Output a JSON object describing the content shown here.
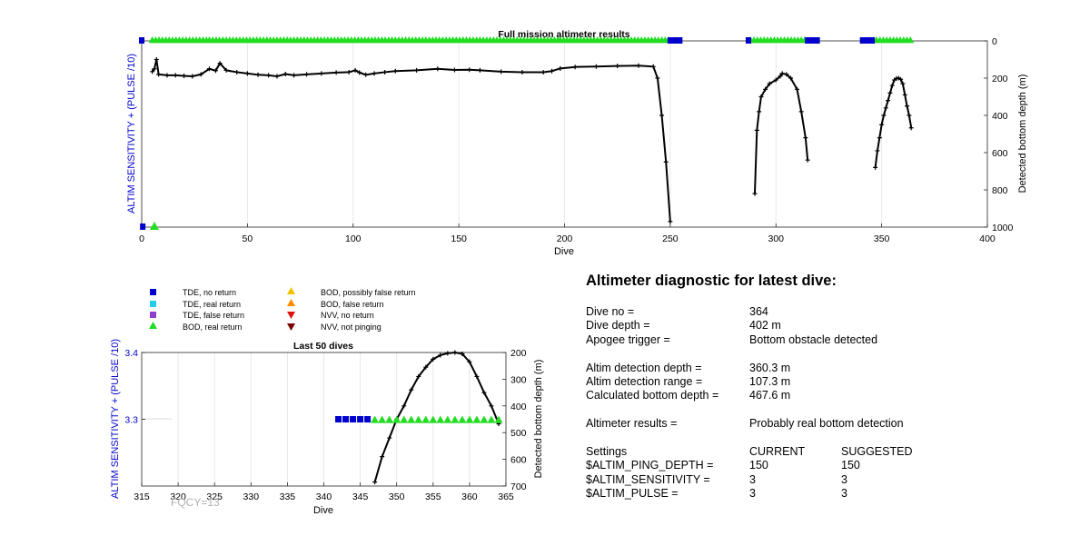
{
  "colors": {
    "axis_blue": "#0000cc",
    "tde_no_return": "#0000cc",
    "tde_real_return": "#22ccee",
    "tde_false_return": "#8a3fd1",
    "bod_real_return": "#22dd22",
    "bod_possibly_false": "#f2c200",
    "bod_false": "#ff8a00",
    "nvv_no_return": "#e01010",
    "nvv_not_pinging": "#7a0000",
    "depth_line": "#000000"
  },
  "chart_data": [
    {
      "id": "full",
      "type": "line",
      "title": "Full mission altimeter results",
      "xlabel": "Dive",
      "ylabel_left": "ALTIM SENSITIVITY + (PULSE /10)",
      "ylabel_right": "Detected bottom depth (m)",
      "xlim": [
        0,
        400
      ],
      "xticks": [
        "0",
        "50",
        "100",
        "150",
        "200",
        "250",
        "300",
        "350",
        "400"
      ],
      "ylim_right": [
        0,
        1000
      ],
      "yticks_right": [
        "0",
        "200",
        "400",
        "600",
        "800",
        "1000"
      ],
      "grid": "vertical",
      "depth_series": [
        {
          "x": [
            5,
            6,
            7,
            8,
            12,
            16,
            20,
            24,
            28,
            32,
            35,
            37,
            40,
            45,
            50,
            55,
            60,
            64,
            68,
            72,
            78,
            85,
            92,
            98,
            101,
            103,
            106,
            110,
            115,
            120,
            130,
            140,
            148,
            155,
            160,
            170,
            180,
            190,
            194,
            198,
            205,
            215,
            225,
            235,
            242,
            244,
            246,
            248,
            250
          ],
          "y": [
            165,
            150,
            100,
            180,
            185,
            185,
            188,
            190,
            180,
            150,
            160,
            120,
            158,
            168,
            175,
            182,
            185,
            190,
            178,
            185,
            180,
            175,
            170,
            168,
            158,
            170,
            182,
            175,
            168,
            162,
            158,
            150,
            156,
            155,
            158,
            165,
            168,
            168,
            162,
            148,
            140,
            138,
            135,
            133,
            138,
            200,
            400,
            650,
            970
          ]
        },
        {
          "x": [
            290,
            291,
            292,
            293,
            295,
            297,
            300,
            302,
            303,
            305,
            307,
            310,
            312,
            314,
            315
          ],
          "y": [
            820,
            480,
            380,
            300,
            260,
            230,
            210,
            190,
            175,
            180,
            200,
            260,
            380,
            520,
            640
          ]
        },
        {
          "x": [
            347,
            348,
            349,
            350,
            351,
            352,
            353,
            354,
            355,
            356,
            357,
            358,
            359,
            360,
            361,
            362,
            363,
            364
          ],
          "y": [
            680,
            590,
            520,
            450,
            400,
            360,
            320,
            280,
            240,
            210,
            202,
            200,
            206,
            230,
            290,
            350,
            400,
            467
          ]
        }
      ],
      "tde_segments": [
        [
          0,
          1
        ],
        [
          250,
          255
        ],
        [
          287,
          288
        ],
        [
          315,
          320
        ],
        [
          341,
          346
        ]
      ],
      "bod_segments": [
        [
          5,
          32
        ],
        [
          32,
          197
        ],
        [
          198,
          250
        ],
        [
          288,
          315
        ],
        [
          346,
          364
        ]
      ],
      "bod_legend_point": {
        "x": 6,
        "y_frac": 1.0
      },
      "tde_legend_point": {
        "x": 0.5,
        "y_frac": 1.0
      }
    },
    {
      "id": "last50",
      "type": "line",
      "title": "Last 50 dives",
      "xlabel": "Dive",
      "ylabel_left": "ALTIM SENSITIVITY + (PULSE /10)",
      "ylabel_right": "Detected bottom depth (m)",
      "xlim": [
        315,
        365
      ],
      "xticks": [
        "315",
        "320",
        "325",
        "330",
        "335",
        "340",
        "345",
        "350",
        "355",
        "360",
        "365"
      ],
      "ylim_left": [
        3.2,
        3.4
      ],
      "yticks_left": [
        "3.4",
        "3.3"
      ],
      "ylim_right": [
        200,
        700
      ],
      "yticks_right": [
        "200",
        "300",
        "400",
        "500",
        "600",
        "700"
      ],
      "grid": "vertical",
      "tde_x": [
        342,
        343,
        344,
        345,
        346
      ],
      "tde_y": 3.3,
      "bod_x": [
        347,
        348,
        349,
        350,
        351,
        352,
        353,
        354,
        355,
        356,
        357,
        358,
        359,
        360,
        361,
        362,
        363,
        364
      ],
      "bod_y": 3.3,
      "depth": {
        "x": [
          347,
          348,
          349,
          350,
          351,
          352,
          353,
          354,
          355,
          356,
          357,
          358,
          359,
          360,
          361,
          362,
          363,
          364
        ],
        "y": [
          685,
          590,
          520,
          450,
          400,
          340,
          290,
          255,
          225,
          210,
          203,
          200,
          205,
          235,
          290,
          350,
          400,
          467
        ]
      },
      "annotation": "FQCY=13"
    }
  ],
  "legend": {
    "col1": [
      "TDE, no return",
      "TDE, real return",
      "TDE, false return",
      "BOD, real return"
    ],
    "col2": [
      "BOD, possibly false return",
      "BOD, false return",
      "NVV, no return",
      "NVV, not pinging"
    ]
  },
  "diagnostic": {
    "title": "Altimeter diagnostic for latest dive:",
    "rows": [
      {
        "label": "Dive no =",
        "value": "364"
      },
      {
        "label": "Dive depth =",
        "value": "402 m"
      },
      {
        "label": "Apogee trigger =",
        "value": "Bottom obstacle detected"
      }
    ],
    "rows2": [
      {
        "label": "Altim detection depth =",
        "value": "360.3 m"
      },
      {
        "label": "Altim detection range =",
        "value": "107.3 m"
      },
      {
        "label": "Calculated bottom depth =",
        "value": "467.6 m"
      }
    ],
    "results_label": "Altimeter results =",
    "results_value": "Probably real bottom detection",
    "settings": {
      "header": [
        "Settings",
        "CURRENT",
        "SUGGESTED"
      ],
      "rows": [
        [
          "$ALTIM_PING_DEPTH =",
          "150",
          "150"
        ],
        [
          "$ALTIM_SENSITIVITY =",
          "3",
          "3"
        ],
        [
          "$ALTIM_PULSE =",
          "3",
          "3"
        ]
      ]
    }
  }
}
